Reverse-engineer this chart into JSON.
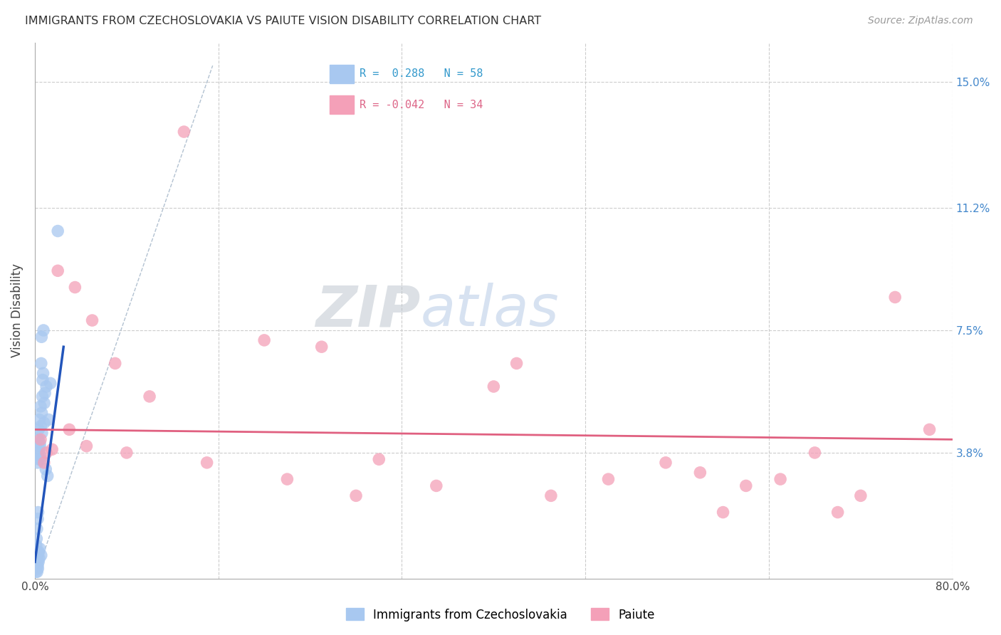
{
  "title": "IMMIGRANTS FROM CZECHOSLOVAKIA VS PAIUTE VISION DISABILITY CORRELATION CHART",
  "source": "Source: ZipAtlas.com",
  "ylabel": "Vision Disability",
  "legend_label_blue": "Immigrants from Czechoslovakia",
  "legend_label_pink": "Paiute",
  "R_blue": 0.288,
  "N_blue": 58,
  "R_pink": -0.042,
  "N_pink": 34,
  "x_min": 0.0,
  "x_max": 80.0,
  "y_min": 0.0,
  "y_max": 16.2,
  "y_ticks": [
    0.0,
    3.8,
    7.5,
    11.2,
    15.0
  ],
  "x_ticks": [
    0.0,
    16.0,
    32.0,
    48.0,
    64.0,
    80.0
  ],
  "color_blue": "#A8C8F0",
  "color_pink": "#F4A0B8",
  "color_blue_line": "#2255BB",
  "color_pink_line": "#E06080",
  "watermark_zip": "ZIP",
  "watermark_atlas": "atlas",
  "blue_dots_x": [
    0.05,
    0.08,
    0.1,
    0.1,
    0.12,
    0.12,
    0.13,
    0.14,
    0.15,
    0.15,
    0.16,
    0.17,
    0.18,
    0.18,
    0.2,
    0.2,
    0.22,
    0.22,
    0.23,
    0.25,
    0.25,
    0.26,
    0.27,
    0.28,
    0.3,
    0.3,
    0.32,
    0.33,
    0.35,
    0.35,
    0.38,
    0.4,
    0.4,
    0.42,
    0.43,
    0.45,
    0.48,
    0.5,
    0.5,
    0.52,
    0.55,
    0.55,
    0.58,
    0.6,
    0.62,
    0.65,
    0.68,
    0.72,
    0.75,
    0.8,
    0.82,
    0.88,
    0.95,
    1.0,
    1.1,
    1.2,
    1.35,
    2.0
  ],
  "blue_dots_y": [
    0.3,
    0.5,
    0.2,
    0.8,
    0.4,
    1.0,
    0.3,
    0.6,
    0.5,
    1.2,
    0.7,
    0.3,
    0.4,
    1.5,
    0.2,
    0.6,
    0.5,
    3.5,
    0.8,
    0.4,
    1.8,
    0.7,
    0.3,
    2.0,
    3.8,
    4.2,
    0.5,
    4.5,
    0.8,
    3.6,
    0.6,
    3.9,
    4.8,
    0.9,
    4.1,
    4.0,
    3.7,
    3.6,
    5.2,
    4.6,
    0.7,
    6.5,
    7.3,
    5.0,
    4.4,
    5.5,
    6.0,
    6.2,
    7.5,
    4.7,
    5.3,
    5.6,
    3.3,
    5.8,
    3.1,
    4.8,
    5.9,
    10.5
  ],
  "pink_dots_x": [
    0.5,
    0.8,
    1.0,
    1.5,
    2.0,
    3.0,
    3.5,
    4.5,
    5.0,
    7.0,
    8.0,
    10.0,
    13.0,
    15.0,
    20.0,
    22.0,
    25.0,
    28.0,
    30.0,
    35.0,
    40.0,
    42.0,
    45.0,
    50.0,
    55.0,
    58.0,
    60.0,
    62.0,
    65.0,
    68.0,
    70.0,
    72.0,
    75.0,
    78.0
  ],
  "pink_dots_y": [
    4.2,
    3.5,
    3.8,
    3.9,
    9.3,
    4.5,
    8.8,
    4.0,
    7.8,
    6.5,
    3.8,
    5.5,
    13.5,
    3.5,
    7.2,
    3.0,
    7.0,
    2.5,
    3.6,
    2.8,
    5.8,
    6.5,
    2.5,
    3.0,
    3.5,
    3.2,
    2.0,
    2.8,
    3.0,
    3.8,
    2.0,
    2.5,
    8.5,
    4.5
  ],
  "blue_line_x": [
    0.0,
    2.5
  ],
  "blue_line_y": [
    0.5,
    7.0
  ],
  "pink_line_x": [
    0.0,
    80.0
  ],
  "pink_line_y": [
    4.5,
    4.2
  ],
  "ref_line_x": [
    0.0,
    15.5
  ],
  "ref_line_y": [
    0.0,
    15.5
  ]
}
